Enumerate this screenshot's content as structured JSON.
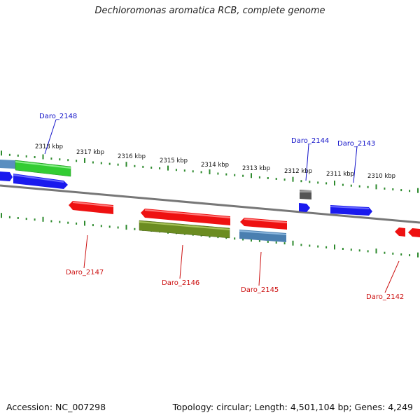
{
  "title": "Dechloromonas aromatica RCB, complete genome",
  "footer": {
    "accession": "Accession: NC_007298",
    "summary": "Topology: circular; Length: 4,501,104 bp; Genes: 4,249"
  },
  "colors": {
    "backbone": "#777777",
    "tick": "#2d8a2d",
    "forward_label": "#1010c8",
    "reverse_label": "#cc1010",
    "red": "#ee1111",
    "blue": "#1a1aee",
    "green": "#33cc33",
    "olive": "#6b8c21",
    "steel": "#4a7fb0",
    "gray": "#555555"
  },
  "scale_labels": [
    "2318 kbp",
    "2317 kbp",
    "2316 kbp",
    "2315 kbp",
    "2314 kbp",
    "2313 kbp",
    "2312 kbp",
    "2311 kbp",
    "2310 kbp"
  ],
  "gene_labels": {
    "forward": [
      "Daro_2148",
      "Daro_2144",
      "Daro_2143"
    ],
    "reverse": [
      "Daro_2147",
      "Daro_2146",
      "Daro_2145",
      "Daro_2142"
    ]
  }
}
